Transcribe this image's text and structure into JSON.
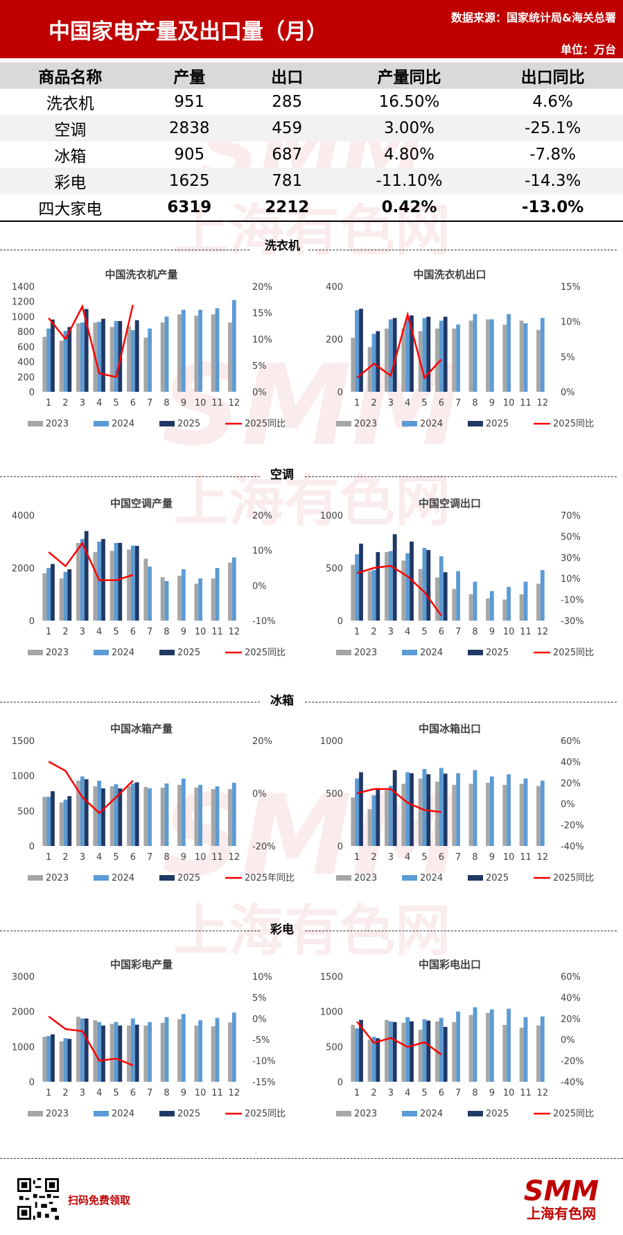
{
  "header": {
    "title": "中国家电产量及出口量（月）",
    "source": "数据来源：国家统计局&海关总署",
    "unit": "单位：万台"
  },
  "summary_table": {
    "headers": [
      "商品名称",
      "产量",
      "出口",
      "产量同比",
      "出口同比"
    ],
    "rows": [
      [
        "洗衣机",
        "951",
        "285",
        "16.50%",
        "4.6%"
      ],
      [
        "空调",
        "2838",
        "459",
        "3.00%",
        "-25.1%"
      ],
      [
        "冰箱",
        "905",
        "687",
        "4.80%",
        "-7.8%"
      ],
      [
        "彩电",
        "1625",
        "781",
        "-11.10%",
        "-14.3%"
      ],
      [
        "四大家电",
        "6319",
        "2212",
        "0.42%",
        "-13.0%"
      ]
    ]
  },
  "sections": [
    "洗衣机",
    "空调",
    "冰箱",
    "彩电"
  ],
  "colors": {
    "y2023": "#a6a6a6",
    "y2024": "#5b9bd5",
    "y2025": "#203864",
    "yoy": "#ff0000",
    "brand": "#c00000"
  },
  "footer": {
    "scan_text": "扫码免费领取",
    "logo_text": "SMM",
    "logo_sub": "上海有色网"
  },
  "watermark": {
    "text": "SMM",
    "sub": "上海有色网"
  },
  "chart_data": [
    {
      "id": "wm-prod",
      "type": "bar",
      "title": "中国洗衣机产量",
      "categories": [
        "1",
        "2",
        "3",
        "4",
        "5",
        "6",
        "7",
        "8",
        "9",
        "10",
        "11",
        "12"
      ],
      "y_ticks": [
        "0",
        "200",
        "400",
        "600",
        "800",
        "1000",
        "1200",
        "1400"
      ],
      "ylim": [
        0,
        1400
      ],
      "y2_ticks": [
        "0%",
        "5%",
        "10%",
        "15%",
        "20%"
      ],
      "y2lim": [
        0,
        20
      ],
      "series": [
        {
          "name": "2023",
          "values": [
            730,
            680,
            910,
            920,
            860,
            870,
            720,
            920,
            1030,
            1010,
            1030,
            920
          ]
        },
        {
          "name": "2024",
          "values": [
            840,
            810,
            920,
            930,
            940,
            820,
            840,
            1000,
            1090,
            1090,
            1110,
            1220
          ]
        },
        {
          "name": "2025",
          "values": [
            960,
            860,
            1100,
            970,
            940,
            951,
            null,
            null,
            null,
            null,
            null,
            null
          ]
        }
      ],
      "line": {
        "name": "2025同比",
        "values": [
          14,
          10,
          16.2,
          3.5,
          2.8,
          16.5,
          null,
          null,
          null,
          null,
          null,
          null
        ]
      },
      "legend": [
        "2023",
        "2024",
        "2025",
        "2025同比"
      ]
    },
    {
      "id": "wm-exp",
      "type": "bar",
      "title": "中国洗衣机出口",
      "categories": [
        "1",
        "2",
        "3",
        "4",
        "5",
        "6",
        "7",
        "8",
        "9",
        "10",
        "11",
        "12"
      ],
      "y_ticks": [
        "0",
        "200",
        "400"
      ],
      "ylim": [
        0,
        400
      ],
      "y2_ticks": [
        "0%",
        "5%",
        "10%",
        "15%"
      ],
      "y2lim": [
        0,
        15
      ],
      "series": [
        {
          "name": "2023",
          "values": [
            205,
            170,
            240,
            240,
            230,
            240,
            240,
            270,
            275,
            255,
            270,
            235
          ]
        },
        {
          "name": "2024",
          "values": [
            310,
            220,
            275,
            280,
            280,
            270,
            255,
            295,
            275,
            295,
            260,
            280
          ]
        },
        {
          "name": "2025",
          "values": [
            315,
            230,
            280,
            290,
            285,
            285,
            null,
            null,
            null,
            null,
            null,
            null
          ]
        }
      ],
      "line": {
        "name": "2025同比",
        "values": [
          2,
          4,
          2.3,
          11,
          2,
          4.6,
          null,
          null,
          null,
          null,
          null,
          null
        ]
      },
      "legend": [
        "2023",
        "2024",
        "2025",
        "2025同比"
      ]
    },
    {
      "id": "ac-prod",
      "type": "bar",
      "title": "中国空调产量",
      "categories": [
        "1",
        "2",
        "3",
        "4",
        "5",
        "6",
        "7",
        "8",
        "9",
        "10",
        "11",
        "12"
      ],
      "y_ticks": [
        "0",
        "2000",
        "4000"
      ],
      "ylim": [
        0,
        4000
      ],
      "y2_ticks": [
        "-10%",
        "0%",
        "10%",
        "20%"
      ],
      "y2lim": [
        -10,
        20
      ],
      "series": [
        {
          "name": "2023",
          "values": [
            1800,
            1600,
            2950,
            2600,
            2650,
            2700,
            2350,
            1650,
            1700,
            1400,
            1600,
            2200
          ]
        },
        {
          "name": "2024",
          "values": [
            2000,
            1850,
            3100,
            3000,
            2950,
            2850,
            2050,
            1500,
            1950,
            1600,
            2000,
            2400
          ]
        },
        {
          "name": "2025",
          "values": [
            2150,
            1950,
            3400,
            3100,
            2950,
            2838,
            null,
            null,
            null,
            null,
            null,
            null
          ]
        }
      ],
      "line": {
        "name": "2025同比",
        "values": [
          9.5,
          5.5,
          12,
          1.5,
          1.5,
          3,
          null,
          null,
          null,
          null,
          null,
          null
        ]
      },
      "legend": [
        "2023",
        "2024",
        "2025",
        "2025同比"
      ]
    },
    {
      "id": "ac-exp",
      "type": "bar",
      "title": "中国空调出口",
      "categories": [
        "1",
        "2",
        "3",
        "4",
        "5",
        "6",
        "7",
        "8",
        "9",
        "10",
        "11",
        "12"
      ],
      "y_ticks": [
        "0",
        "500",
        "1000"
      ],
      "ylim": [
        0,
        1000
      ],
      "y2_ticks": [
        "-30%",
        "-10%",
        "10%",
        "30%",
        "50%",
        "70%"
      ],
      "y2lim": [
        -30,
        70
      ],
      "series": [
        {
          "name": "2023",
          "values": [
            530,
            470,
            650,
            570,
            490,
            410,
            300,
            250,
            210,
            200,
            250,
            350
          ]
        },
        {
          "name": "2024",
          "values": [
            630,
            480,
            660,
            640,
            690,
            610,
            470,
            370,
            280,
            320,
            370,
            480
          ]
        },
        {
          "name": "2025",
          "values": [
            730,
            650,
            820,
            750,
            670,
            459,
            null,
            null,
            null,
            null,
            null,
            null
          ]
        }
      ],
      "line": {
        "name": "2025同比",
        "values": [
          15,
          20,
          22,
          12,
          -3,
          -25.1,
          null,
          null,
          null,
          null,
          null,
          null
        ]
      },
      "legend": [
        "2023",
        "2024",
        "2025",
        "2025同比"
      ]
    },
    {
      "id": "fr-prod",
      "type": "bar",
      "title": "中国冰箱产量",
      "categories": [
        "1",
        "2",
        "3",
        "4",
        "5",
        "6",
        "7",
        "8",
        "9",
        "10",
        "11",
        "12"
      ],
      "y_ticks": [
        "0",
        "500",
        "1000",
        "1500"
      ],
      "ylim": [
        0,
        1500
      ],
      "y2_ticks": [
        "-20%",
        "0%",
        "20%"
      ],
      "y2lim": [
        -20,
        20
      ],
      "series": [
        {
          "name": "2023",
          "values": [
            700,
            620,
            930,
            850,
            850,
            850,
            840,
            830,
            870,
            830,
            810,
            810
          ]
        },
        {
          "name": "2024",
          "values": [
            700,
            660,
            990,
            930,
            880,
            890,
            820,
            890,
            960,
            870,
            850,
            900
          ]
        },
        {
          "name": "2025",
          "values": [
            780,
            710,
            950,
            820,
            820,
            905,
            null,
            null,
            null,
            null,
            null,
            null
          ]
        }
      ],
      "line": {
        "name": "2025年同比",
        "values": [
          12,
          8.5,
          -1.5,
          -7.5,
          -1.5,
          4.8,
          null,
          null,
          null,
          null,
          null,
          null
        ]
      },
      "legend": [
        "2023",
        "2024",
        "2025",
        "2025年同比"
      ]
    },
    {
      "id": "fr-exp",
      "type": "bar",
      "title": "中国冰箱出口",
      "categories": [
        "1",
        "2",
        "3",
        "4",
        "5",
        "6",
        "7",
        "8",
        "9",
        "10",
        "11",
        "12"
      ],
      "y_ticks": [
        "0",
        "500",
        "1000"
      ],
      "ylim": [
        0,
        1000
      ],
      "y2_ticks": [
        "-40%",
        "-20%",
        "0%",
        "20%",
        "40%",
        "60%"
      ],
      "y2lim": [
        -40,
        60
      ],
      "series": [
        {
          "name": "2023",
          "values": [
            460,
            350,
            530,
            590,
            640,
            610,
            580,
            590,
            600,
            580,
            590,
            570
          ]
        },
        {
          "name": "2024",
          "values": [
            640,
            480,
            570,
            700,
            730,
            740,
            690,
            720,
            660,
            680,
            640,
            620
          ]
        },
        {
          "name": "2025",
          "values": [
            700,
            550,
            720,
            690,
            680,
            687,
            null,
            null,
            null,
            null,
            null,
            null
          ]
        }
      ],
      "line": {
        "name": "2025同比",
        "values": [
          10,
          14,
          14,
          1,
          -6,
          -7.8,
          null,
          null,
          null,
          null,
          null,
          null
        ]
      },
      "legend": [
        "2023",
        "2024",
        "2025",
        "2025同比"
      ]
    },
    {
      "id": "tv-prod",
      "type": "bar",
      "title": "中国彩电产量",
      "categories": [
        "1",
        "2",
        "3",
        "4",
        "5",
        "6",
        "7",
        "8",
        "9",
        "10",
        "11",
        "12"
      ],
      "y_ticks": [
        "0",
        "1000",
        "2000",
        "3000"
      ],
      "ylim": [
        0,
        3000
      ],
      "y2_ticks": [
        "-15%",
        "-10%",
        "-5%",
        "0%",
        "5%",
        "10%"
      ],
      "y2lim": [
        -15,
        10
      ],
      "series": [
        {
          "name": "2023",
          "values": [
            1280,
            1150,
            1850,
            1750,
            1650,
            1600,
            1600,
            1680,
            1780,
            1600,
            1580,
            1690
          ]
        },
        {
          "name": "2024",
          "values": [
            1300,
            1240,
            1800,
            1700,
            1700,
            1800,
            1700,
            1840,
            1930,
            1750,
            1820,
            1970
          ]
        },
        {
          "name": "2025",
          "values": [
            1350,
            1220,
            1800,
            1600,
            1600,
            1625,
            null,
            null,
            null,
            null,
            null,
            null
          ]
        }
      ],
      "line": {
        "name": "2025同比",
        "values": [
          0.5,
          -2.5,
          -3,
          -10,
          -9.5,
          -11.1,
          null,
          null,
          null,
          null,
          null,
          null
        ]
      },
      "legend": [
        "2023",
        "2024",
        "2025",
        "2025同比"
      ]
    },
    {
      "id": "tv-exp",
      "type": "bar",
      "title": "中国彩电出口",
      "categories": [
        "1",
        "2",
        "3",
        "4",
        "5",
        "6",
        "7",
        "8",
        "9",
        "10",
        "11",
        "12"
      ],
      "y_ticks": [
        "0",
        "500",
        "1000",
        "1500"
      ],
      "ylim": [
        0,
        1500
      ],
      "y2_ticks": [
        "-40%",
        "-20%",
        "0%",
        "20%",
        "40%",
        "60%"
      ],
      "y2lim": [
        -40,
        60
      ],
      "series": [
        {
          "name": "2023",
          "values": [
            810,
            600,
            880,
            840,
            740,
            860,
            850,
            950,
            980,
            810,
            770,
            800
          ]
        },
        {
          "name": "2024",
          "values": [
            760,
            640,
            860,
            920,
            890,
            910,
            1000,
            1060,
            1030,
            1040,
            920,
            930
          ]
        },
        {
          "name": "2025",
          "values": [
            880,
            620,
            850,
            860,
            870,
            781,
            null,
            null,
            null,
            null,
            null,
            null
          ]
        }
      ],
      "line": {
        "name": "2025同比",
        "values": [
          17,
          -3,
          1.5,
          -7,
          -2.5,
          -14.3,
          null,
          null,
          null,
          null,
          null,
          null
        ]
      },
      "legend": [
        "2023",
        "2024",
        "2025",
        "2025同比"
      ]
    }
  ]
}
